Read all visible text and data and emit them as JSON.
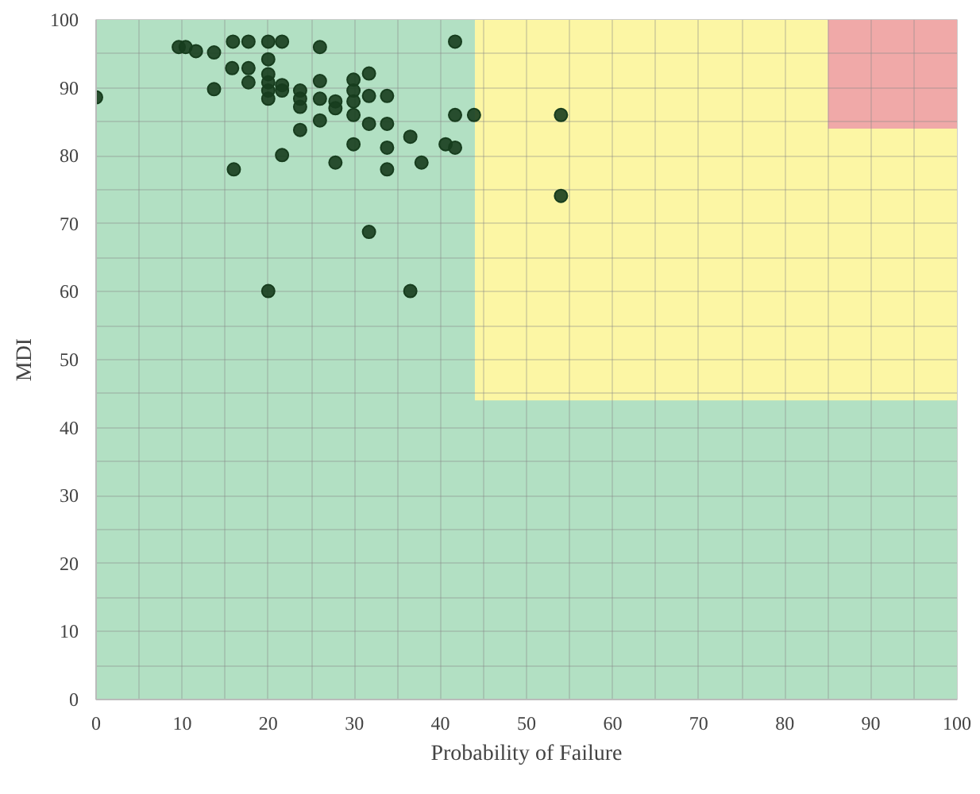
{
  "chart_data": {
    "type": "scatter",
    "xlabel": "Probability of Failure",
    "ylabel": "MDI",
    "xlim": [
      0,
      100
    ],
    "ylim": [
      0,
      100
    ],
    "xticks": [
      0,
      {
        "value": 5,
        "label": null
      },
      10,
      {
        "value": 15,
        "label": null
      },
      20,
      {
        "value": 25,
        "label": null
      },
      30,
      {
        "value": 35,
        "label": null
      },
      40,
      {
        "value": 45,
        "label": null
      },
      50,
      {
        "value": 55,
        "label": null
      },
      60,
      {
        "value": 65,
        "label": null
      },
      70,
      {
        "value": 75,
        "label": null
      },
      80,
      {
        "value": 85,
        "label": null
      },
      90,
      {
        "value": 95,
        "label": null
      },
      100
    ],
    "yticks": [
      0,
      {
        "value": 5,
        "label": null
      },
      10,
      {
        "value": 15,
        "label": null
      },
      20,
      {
        "value": 25,
        "label": null
      },
      30,
      {
        "value": 35,
        "label": null
      },
      40,
      {
        "value": 45,
        "label": null
      },
      50,
      {
        "value": 55,
        "label": null
      },
      60,
      {
        "value": 65,
        "label": null
      },
      70,
      {
        "value": 75,
        "label": null
      },
      80,
      {
        "value": 85,
        "label": null
      },
      90,
      {
        "value": 95,
        "label": null
      },
      100
    ],
    "grid": true,
    "series": [
      {
        "type": "area",
        "color": "#f0a9a8",
        "x": [
          85,
          100
        ],
        "values": [
          100,
          100
        ]
      },
      {
        "type": "area",
        "color": "#fcf6a4",
        "x": [
          44,
          85,
          85,
          100
        ],
        "values": [
          100,
          100,
          84,
          84
        ]
      },
      {
        "type": "area",
        "color": "#b2e0c3",
        "x": [
          0,
          44,
          44,
          100
        ],
        "values": [
          100,
          100,
          44,
          44
        ]
      },
      {
        "marker": "circle",
        "color": "#173d1e",
        "x": [
          0,
          9.6,
          10.4,
          11.6,
          13.7,
          15.9,
          17.7,
          20,
          21.6,
          26,
          41.7,
          15.8,
          17.7,
          20,
          17.7,
          13.7,
          20,
          20,
          20,
          20,
          21.6,
          21.6,
          23.7,
          23.7,
          23.7,
          23.7,
          26,
          26,
          26,
          27.8,
          27.8,
          29.9,
          29.9,
          29.9,
          29.9,
          31.7,
          31.7,
          31.7,
          33.8,
          33.8,
          33.8,
          29.9,
          36.5,
          40.6,
          41.7,
          41.7,
          43.9,
          16,
          21.6,
          27.8,
          33.8,
          37.8,
          31.7,
          20,
          36.5,
          54,
          54
        ],
        "values": [
          88.6,
          96,
          96,
          95.4,
          95.2,
          96.8,
          96.8,
          96.8,
          96.8,
          96,
          96.8,
          92.9,
          92.9,
          94.2,
          90.8,
          89.8,
          92,
          90.8,
          89.6,
          88.4,
          90.4,
          89.6,
          89.6,
          88.4,
          87.2,
          83.8,
          91,
          88.4,
          85.2,
          88,
          87,
          91.2,
          89.6,
          88,
          86,
          92.1,
          88.8,
          84.7,
          88.8,
          84.7,
          81.2,
          81.7,
          82.8,
          81.7,
          86,
          81.2,
          86,
          78,
          80.1,
          79,
          78,
          79,
          68.8,
          60.1,
          60.1,
          86,
          74.1
        ]
      }
    ]
  }
}
